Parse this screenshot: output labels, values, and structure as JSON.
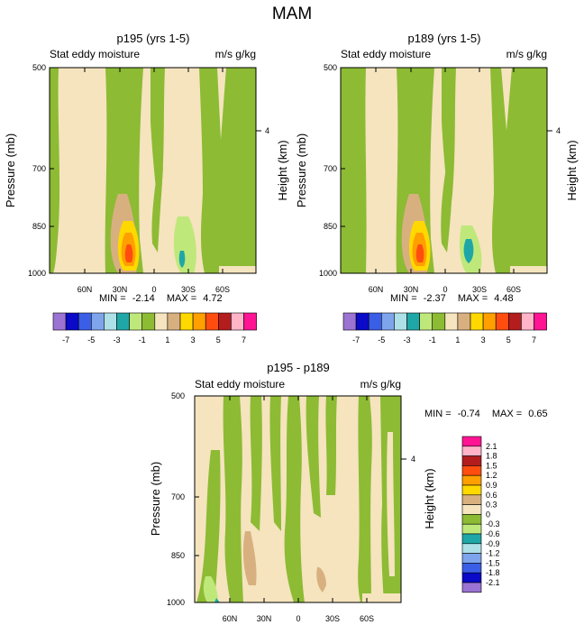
{
  "figure_title": "MAM",
  "colors": {
    "tan_light": "#f5e4be",
    "green": "#8dbb34",
    "green_light": "#bfe87a",
    "teal": "#1fa7a7",
    "tan_dark": "#d8b080",
    "yellow": "#ffd800",
    "orange": "#ff9f00",
    "red_orange": "#ff4d10"
  },
  "chart_data": [
    {
      "type": "heatmap",
      "id": "p1",
      "title": "p195 (yrs 1-5)",
      "left_label": "Stat eddy moisture",
      "right_label": "m/s g/kg",
      "ylabel": "Pressure (mb)",
      "y2label": "Height (km)",
      "yticks": [
        "500",
        "700",
        "850",
        "1000"
      ],
      "y2ticks": [
        "4"
      ],
      "xticks": [
        "60N",
        "30N",
        "0",
        "30S",
        "60S"
      ],
      "ylim": [
        1000,
        500
      ],
      "min_label": "MIN =",
      "min_value": "-2.14",
      "max_label": "MAX =",
      "max_value": "4.72"
    },
    {
      "type": "heatmap",
      "id": "p2",
      "title": "p189 (yrs 1-5)",
      "left_label": "Stat eddy moisture",
      "right_label": "m/s g/kg",
      "ylabel": "Pressure (mb)",
      "y2label": "Height (km)",
      "yticks": [
        "500",
        "700",
        "850",
        "1000"
      ],
      "y2ticks": [
        "4"
      ],
      "xticks": [
        "60N",
        "30N",
        "0",
        "30S",
        "60S"
      ],
      "ylim": [
        1000,
        500
      ],
      "min_label": "MIN =",
      "min_value": "-2.37",
      "max_label": "MAX =",
      "max_value": "4.48"
    },
    {
      "type": "heatmap",
      "id": "p3",
      "title": "p195 - p189",
      "left_label": "Stat eddy moisture",
      "right_label": "m/s g/kg",
      "ylabel": "Pressure (mb)",
      "y2label": "Height (km)",
      "yticks": [
        "500",
        "700",
        "850",
        "1000"
      ],
      "y2ticks": [
        "4"
      ],
      "xticks": [
        "60N",
        "30N",
        "0",
        "30S",
        "60S"
      ],
      "ylim": [
        1000,
        500
      ],
      "min_label": "MIN =",
      "min_value": "-0.74",
      "max_label": "MAX =",
      "max_value": "0.65"
    }
  ],
  "colorbar_top": {
    "colors": [
      "#9b73d2",
      "#0a0ac8",
      "#3a5ee6",
      "#7ea4ec",
      "#aee0e8",
      "#1fa7a7",
      "#bfe87a",
      "#8dbb34",
      "#f5e4be",
      "#d8b080",
      "#ffd800",
      "#ff9f00",
      "#ff4d10",
      "#b31d1d",
      "#ffb4c8",
      "#ff1493"
    ],
    "labels": [
      "-7",
      "-5",
      "-3",
      "-1",
      "1",
      "3",
      "5",
      "7"
    ]
  },
  "colorbar_diff": {
    "colors": [
      "#ff1493",
      "#ffb4c8",
      "#b31d1d",
      "#ff4d10",
      "#ff9f00",
      "#ffd800",
      "#d8b080",
      "#f5e4be",
      "#8dbb34",
      "#bfe87a",
      "#1fa7a7",
      "#aee0e8",
      "#7ea4ec",
      "#3a5ee6",
      "#0a0ac8",
      "#9b73d2"
    ],
    "labels": [
      "2.1",
      "1.8",
      "1.5",
      "1.2",
      "0.9",
      "0.6",
      "0.3",
      "0",
      "-0.3",
      "-0.6",
      "-0.9",
      "-1.2",
      "-1.5",
      "-1.8",
      "-2.1"
    ]
  }
}
